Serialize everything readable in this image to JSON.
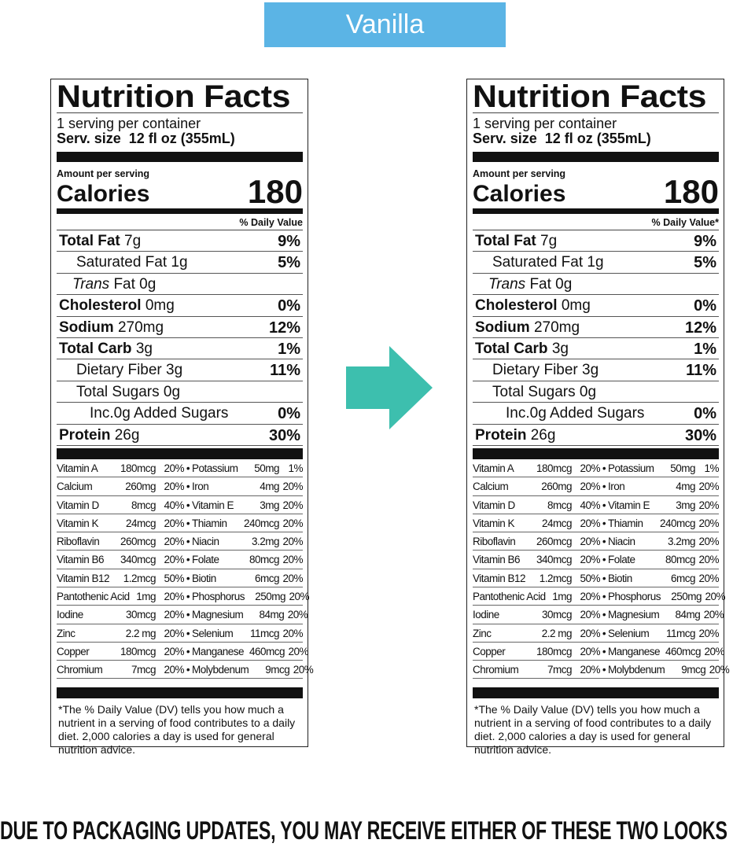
{
  "banner": {
    "label": "Vanilla",
    "color": "#5bb4e5"
  },
  "arrow": {
    "icon": "right-arrow-icon",
    "color": "#3dbfae"
  },
  "labels": [
    {
      "dv_header": "% Daily Value"
    },
    {
      "dv_header": "% Daily Value*"
    }
  ],
  "facts": {
    "title": "Nutrition Facts",
    "servings": "1 serving per container",
    "serving_size": "Serv. size  12 fl oz (355mL)",
    "amount_per_serving": "Amount per serving",
    "calories_label": "Calories",
    "calories_value": "180",
    "nutrients": [
      {
        "name": "Total Fat",
        "amount": "7g",
        "dv": "9%",
        "bold": true,
        "indent": 0
      },
      {
        "name": "Saturated Fat",
        "amount": "1g",
        "dv": "5%",
        "bold": false,
        "indent": 1
      },
      {
        "name": "Trans",
        "amount": "Fat 0g",
        "dv": "",
        "bold": false,
        "indent": 2,
        "italic": true
      },
      {
        "name": "Cholesterol",
        "amount": "0mg",
        "dv": "0%",
        "bold": true,
        "indent": 0
      },
      {
        "name": "Sodium",
        "amount": "270mg",
        "dv": "12%",
        "bold": true,
        "indent": 0
      },
      {
        "name": "Total Carb",
        "amount": "3g",
        "dv": "1%",
        "bold": true,
        "indent": 0
      },
      {
        "name": "Dietary Fiber",
        "amount": "3g",
        "dv": "11%",
        "bold": false,
        "indent": 1
      },
      {
        "name": "Total Sugars",
        "amount": "0g",
        "dv": "",
        "bold": false,
        "indent": 1
      },
      {
        "name": "Inc.0g Added Sugars",
        "amount": "",
        "dv": "0%",
        "bold": false,
        "indent": 3
      },
      {
        "name": "Protein",
        "amount": "26g",
        "dv": "30%",
        "bold": true,
        "indent": 0
      }
    ],
    "vitamins": [
      [
        "Vitamin A",
        "180mcg",
        "20%",
        "Potassium",
        "50mg",
        "1%"
      ],
      [
        "Calcium",
        "260mg",
        "20%",
        "Iron",
        "4mg",
        "20%"
      ],
      [
        "Vitamin D",
        "8mcg",
        "40%",
        "Vitamin E",
        "3mg",
        "20%"
      ],
      [
        "Vitamin K",
        "24mcg",
        "20%",
        "Thiamin",
        "240mcg",
        "20%"
      ],
      [
        "Riboflavin",
        "260mcg",
        "20%",
        "Niacin",
        "3.2mg",
        "20%"
      ],
      [
        "Vitamin B6",
        "340mcg",
        "20%",
        "Folate",
        "80mcg",
        "20%"
      ],
      [
        "Vitamin B12",
        "1.2mcg",
        "50%",
        "Biotin",
        "6mcg",
        "20%"
      ],
      [
        "Pantothenic Acid",
        "1mg",
        "20%",
        "Phosphorus",
        "250mg",
        "20%"
      ],
      [
        "Iodine",
        "30mcg",
        "20%",
        "Magnesium",
        "84mg",
        "20%"
      ],
      [
        "Zinc",
        "2.2 mg",
        "20%",
        "Selenium",
        "11mcg",
        "20%"
      ],
      [
        "Copper",
        "180mcg",
        "20%",
        "Manganese",
        "460mcg",
        "20%"
      ],
      [
        "Chromium",
        "7mcg",
        "20%",
        "Molybdenum",
        "9mcg",
        "20%"
      ]
    ],
    "footnote": "*The % Daily Value (DV) tells you how much a nutrient in a serving of food contributes to a daily diet. 2,000 calories a day is used for general nutrition advice."
  },
  "bottom_notice": "DUE TO PACKAGING UPDATES, YOU MAY RECEIVE EITHER OF THESE TWO LOOKS"
}
